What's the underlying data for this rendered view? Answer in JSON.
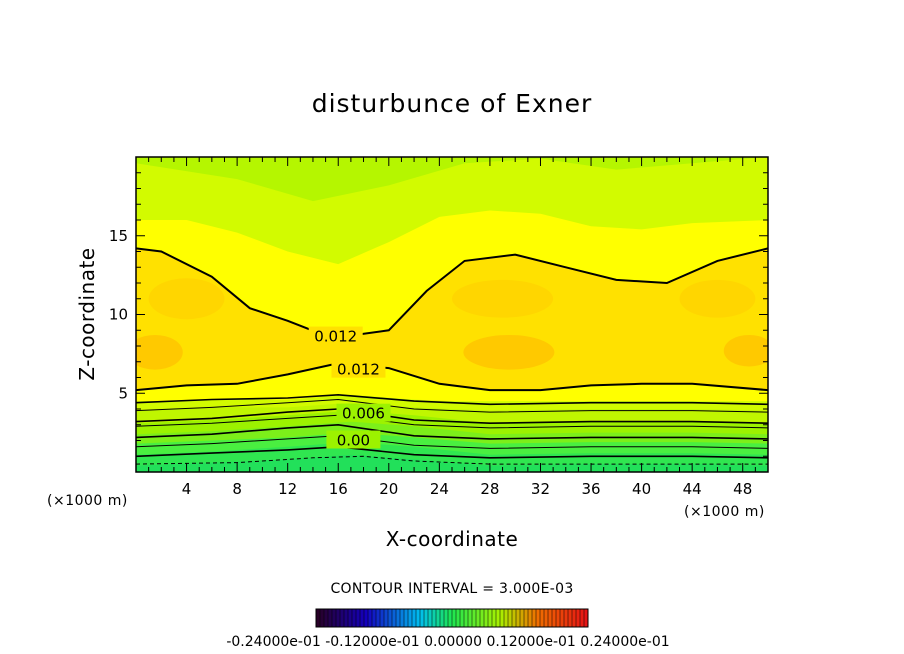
{
  "chart_data": {
    "type": "heatmap",
    "title": "disturbunce of Exner",
    "xlabel": "X-coordinate",
    "ylabel": "Z-coordinate",
    "x_unit": "(×1000 m)",
    "xlim": [
      0,
      50
    ],
    "ylim": [
      0,
      20
    ],
    "x_ticks": [
      4,
      8,
      12,
      16,
      20,
      24,
      28,
      32,
      36,
      40,
      44,
      48
    ],
    "y_ticks": [
      5,
      10,
      15
    ],
    "contour_labels": [
      {
        "text": "0.012",
        "x": 15.8,
        "z": 8.6
      },
      {
        "text": "0.012",
        "x": 17.6,
        "z": 6.5
      },
      {
        "text": "0.006",
        "x": 18.0,
        "z": 3.7
      },
      {
        "text": "0.00",
        "x": 17.2,
        "z": 2.0
      }
    ],
    "contour_interval_text": "CONTOUR INTERVAL = 3.000E-03",
    "colorbar_ticks_text": "-0.24000e-01  -0.12000e-01  0.00000  0.12000e-01  0.24000e-01",
    "colors": {
      "band_green_dark": "#22e05a",
      "band_green": "#4aef40",
      "band_lime": "#9cf200",
      "band_yellow_green": "#d2fb00",
      "band_yellow": "#ffff00",
      "band_gold": "#ffe100",
      "band_orange": "#ffc400"
    }
  }
}
